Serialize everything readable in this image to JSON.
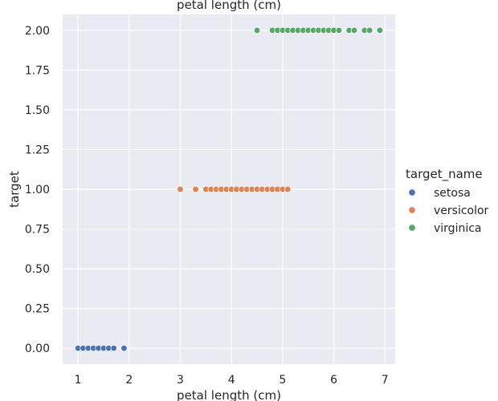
{
  "chart_data": {
    "type": "scatter",
    "title": "petal length (cm)",
    "xlabel": "petal length (cm)",
    "ylabel": "target",
    "xlim": [
      0.7,
      7.2
    ],
    "ylim": [
      -0.1,
      2.1
    ],
    "xticks": [
      1,
      2,
      3,
      4,
      5,
      6,
      7
    ],
    "yticks": [
      0.0,
      0.25,
      0.5,
      0.75,
      1.0,
      1.25,
      1.5,
      1.75,
      2.0
    ],
    "grid": true,
    "legend": {
      "title": "target_name",
      "placement": "right",
      "entries": [
        "setosa",
        "versicolor",
        "virginica"
      ]
    },
    "series": [
      {
        "name": "setosa",
        "color": "#4c72b0",
        "x": [
          1.0,
          1.1,
          1.2,
          1.3,
          1.4,
          1.5,
          1.6,
          1.7,
          1.9
        ],
        "y": [
          0,
          0,
          0,
          0,
          0,
          0,
          0,
          0,
          0
        ]
      },
      {
        "name": "versicolor",
        "color": "#dd8452",
        "x": [
          3.0,
          3.3,
          3.5,
          3.6,
          3.7,
          3.8,
          3.9,
          4.0,
          4.1,
          4.2,
          4.3,
          4.4,
          4.5,
          4.6,
          4.7,
          4.8,
          4.9,
          5.0,
          5.1
        ],
        "y": [
          1,
          1,
          1,
          1,
          1,
          1,
          1,
          1,
          1,
          1,
          1,
          1,
          1,
          1,
          1,
          1,
          1,
          1,
          1
        ]
      },
      {
        "name": "virginica",
        "color": "#55a868",
        "x": [
          4.5,
          4.8,
          4.9,
          5.0,
          5.1,
          5.2,
          5.3,
          5.4,
          5.5,
          5.6,
          5.7,
          5.8,
          5.9,
          6.0,
          6.1,
          6.3,
          6.4,
          6.6,
          6.7,
          6.9
        ],
        "y": [
          2,
          2,
          2,
          2,
          2,
          2,
          2,
          2,
          2,
          2,
          2,
          2,
          2,
          2,
          2,
          2,
          2,
          2,
          2,
          2
        ]
      }
    ]
  }
}
